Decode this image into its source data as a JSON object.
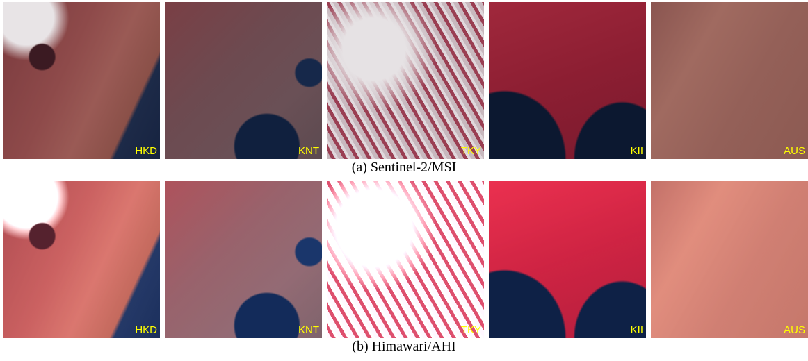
{
  "rows": [
    {
      "caption": "(a) Sentinel-2/MSI",
      "tiles": [
        "HKD",
        "KNT",
        "TKY",
        "KII",
        "AUS"
      ]
    },
    {
      "caption": "(b) Himawari/AHI",
      "tiles": [
        "HKD",
        "KNT",
        "TKY",
        "KII",
        "AUS"
      ]
    }
  ]
}
